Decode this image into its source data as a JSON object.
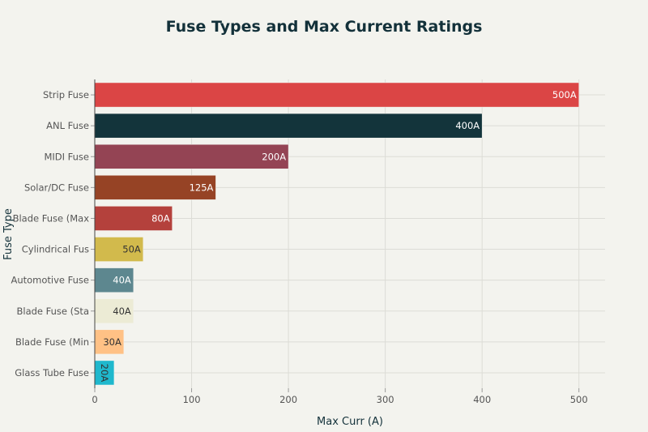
{
  "chart_data": {
    "type": "bar",
    "orientation": "horizontal",
    "title": "Fuse Types and Max Current Ratings",
    "xlabel": "Max Curr (A)",
    "ylabel": "Fuse Type",
    "xlim": [
      0,
      527
    ],
    "xticks": [
      0,
      100,
      200,
      300,
      400,
      500
    ],
    "grid": true,
    "categories": [
      "Strip Fuse",
      "ANL Fuse",
      "MIDI Fuse",
      "Solar/DC Fuse",
      "Blade Fuse (Max",
      "Cylindrical Fus",
      "Automotive Fuse",
      "Blade Fuse (Sta",
      "Blade Fuse (Min",
      "Glass Tube Fuse"
    ],
    "values": [
      500,
      400,
      200,
      125,
      80,
      50,
      40,
      40,
      30,
      20
    ],
    "data_labels": [
      "500A",
      "400A",
      "200A",
      "125A",
      "80A",
      "50A",
      "40A",
      "40A",
      "30A",
      "20A"
    ],
    "colors": [
      "#db4545",
      "#13343b",
      "#944454",
      "#964325",
      "#b4413c",
      "#d2ba4c",
      "#5d878f",
      "#ecebd5",
      "#ffc185",
      "#1fb8cd"
    ],
    "label_colors": [
      "#ffffff",
      "#ffffff",
      "#ffffff",
      "#ffffff",
      "#ffffff",
      "#333333",
      "#ffffff",
      "#333333",
      "#333333",
      "#333333"
    ]
  }
}
